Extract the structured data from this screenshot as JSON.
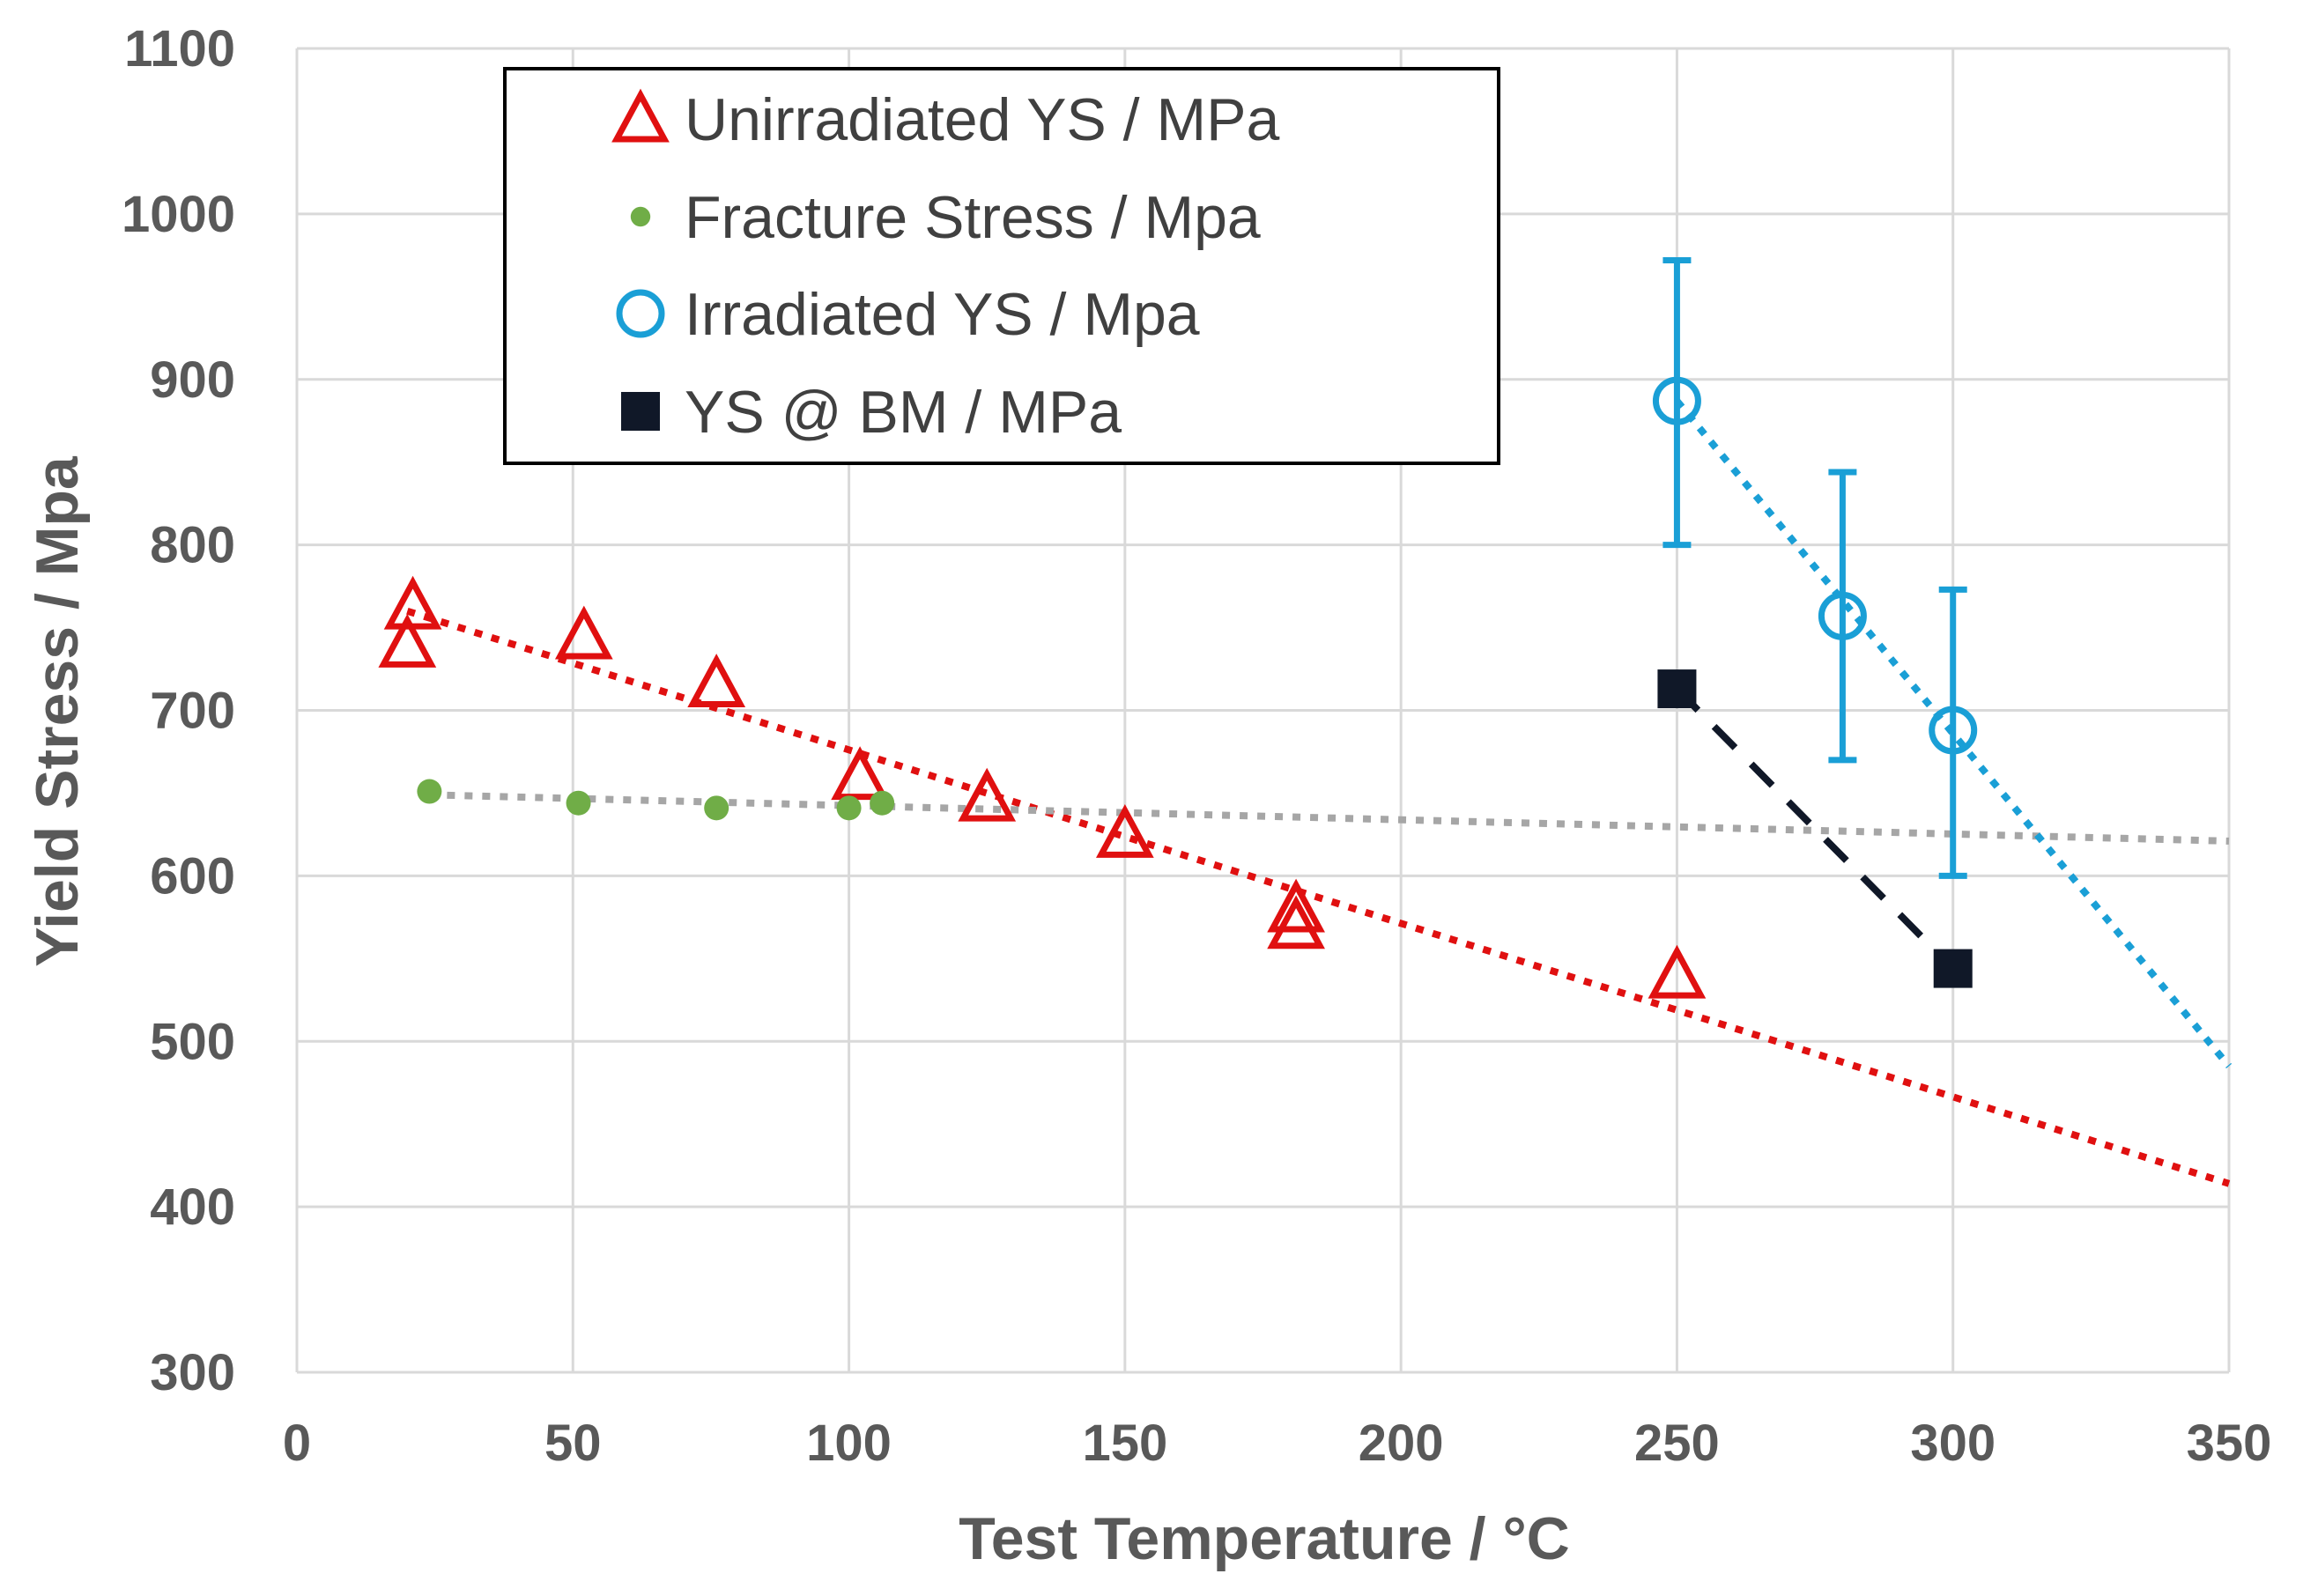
{
  "chart_data": {
    "type": "scatter",
    "title": "",
    "xlabel": "Test Temperature / °C",
    "ylabel": "Yield Stress / Mpa",
    "xlim": [
      0,
      350
    ],
    "ylim": [
      300,
      1100
    ],
    "xticks": [
      0,
      50,
      100,
      150,
      200,
      250,
      300,
      350
    ],
    "yticks": [
      300,
      400,
      500,
      600,
      700,
      800,
      900,
      1000,
      1100
    ],
    "grid": true,
    "legend_position": "top-left",
    "colors": {
      "unirradiated": "#e01010",
      "fracture": "#70ad47",
      "irradiated": "#1a9fd6",
      "bm": "#101828",
      "fracture_trend": "#a6a6a6",
      "grid": "#d9d9d9"
    },
    "series": [
      {
        "name": "Unirradiated YS / MPa",
        "marker": "triangle-open",
        "color": "#e01010",
        "points": [
          {
            "x": 21,
            "y": 763
          },
          {
            "x": 20,
            "y": 740
          },
          {
            "x": 52,
            "y": 745
          },
          {
            "x": 76,
            "y": 716
          },
          {
            "x": 102,
            "y": 660
          },
          {
            "x": 125,
            "y": 647
          },
          {
            "x": 150,
            "y": 625
          },
          {
            "x": 181,
            "y": 580
          },
          {
            "x": 181,
            "y": 570
          },
          {
            "x": 250,
            "y": 540
          }
        ],
        "trendline": {
          "style": "dotted",
          "from": [
            20,
            760
          ],
          "to": [
            350,
            414
          ]
        }
      },
      {
        "name": "Fracture Stress / Mpa",
        "marker": "dot",
        "color": "#70ad47",
        "points": [
          {
            "x": 24,
            "y": 651
          },
          {
            "x": 51,
            "y": 644
          },
          {
            "x": 76,
            "y": 641
          },
          {
            "x": 100,
            "y": 641
          },
          {
            "x": 106,
            "y": 644
          }
        ],
        "trendline": {
          "style": "dotted",
          "from": [
            24,
            649
          ],
          "to": [
            350,
            621
          ]
        }
      },
      {
        "name": "Irradiated YS / Mpa",
        "marker": "circle-open",
        "color": "#1a9fd6",
        "points": [
          {
            "x": 250,
            "y": 887,
            "err_low": 800,
            "err_high": 972
          },
          {
            "x": 280,
            "y": 757,
            "err_low": 670,
            "err_high": 844
          },
          {
            "x": 300,
            "y": 688,
            "err_low": 600,
            "err_high": 773
          }
        ],
        "trendline": {
          "style": "dotted",
          "from": [
            250,
            887
          ],
          "to": [
            350,
            485
          ]
        }
      },
      {
        "name": "YS @ BM / MPa",
        "marker": "square",
        "color": "#101828",
        "points": [
          {
            "x": 250,
            "y": 713
          },
          {
            "x": 300,
            "y": 544
          }
        ],
        "trendline": {
          "style": "dashed",
          "from": [
            250,
            713
          ],
          "to": [
            300,
            544
          ]
        }
      }
    ]
  }
}
